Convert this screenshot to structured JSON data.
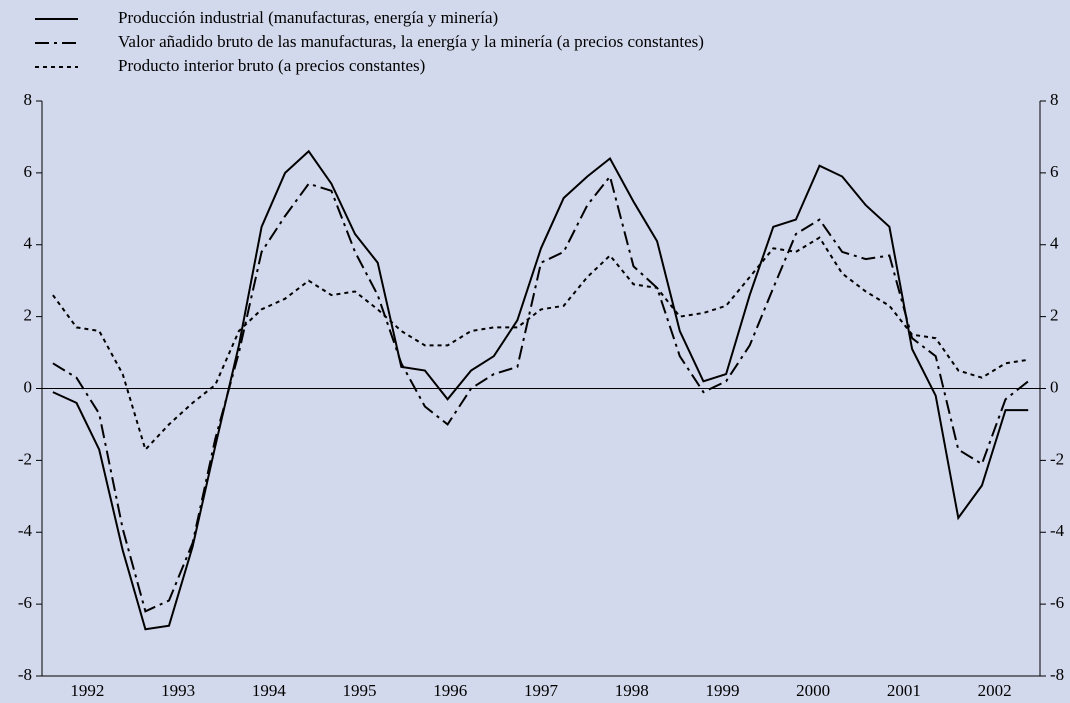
{
  "chart_data": {
    "type": "line",
    "x": [
      1992.12,
      1992.38,
      1992.63,
      1992.89,
      1993.14,
      1993.4,
      1993.66,
      1993.91,
      1994.17,
      1994.42,
      1994.68,
      1994.94,
      1995.19,
      1995.45,
      1995.7,
      1995.96,
      1996.22,
      1996.47,
      1996.73,
      1996.98,
      1997.24,
      1997.5,
      1997.75,
      1998.01,
      1998.26,
      1998.52,
      1998.78,
      1999.03,
      1999.29,
      1999.54,
      1999.8,
      2000.06,
      2000.31,
      2000.57,
      2000.82,
      2001.08,
      2001.34,
      2001.59,
      2001.85,
      2002.1,
      2002.36,
      2002.62,
      2002.87
    ],
    "series": [
      {
        "name": "Producción industrial (manufacturas, energía y minería)",
        "color": "#000000",
        "style": "solid",
        "values": [
          -0.1,
          -0.4,
          -1.7,
          -4.5,
          -6.7,
          -6.6,
          -4.4,
          -1.6,
          1.2,
          4.5,
          6.0,
          6.6,
          5.7,
          4.3,
          3.5,
          0.6,
          0.5,
          -0.3,
          0.5,
          0.9,
          1.9,
          3.9,
          5.3,
          5.9,
          6.4,
          5.2,
          4.1,
          1.6,
          0.2,
          0.4,
          2.6,
          4.5,
          4.7,
          6.2,
          5.9,
          5.1,
          4.5,
          1.1,
          -0.2,
          -3.6,
          -2.7,
          -0.6,
          -0.6
        ]
      },
      {
        "name": "Valor añadido bruto de las manufacturas, la energía y la minería (a precios constantes)",
        "color": "#000000",
        "style": "dashdot",
        "values": [
          0.7,
          0.3,
          -0.7,
          -3.9,
          -6.2,
          -5.9,
          -4.3,
          -1.4,
          1.0,
          3.8,
          4.8,
          5.7,
          5.5,
          3.8,
          2.6,
          0.7,
          -0.5,
          -1.0,
          0.0,
          0.4,
          0.6,
          3.5,
          3.8,
          5.1,
          5.9,
          3.4,
          2.8,
          0.9,
          -0.1,
          0.2,
          1.2,
          2.8,
          4.3,
          4.7,
          3.8,
          3.6,
          3.7,
          1.4,
          0.9,
          -1.7,
          -2.1,
          -0.3,
          0.2
        ]
      },
      {
        "name": "Producto interior bruto (a precios constantes)",
        "color": "#000000",
        "style": "dotted",
        "values": [
          2.6,
          1.7,
          1.6,
          0.4,
          -1.7,
          -1.0,
          -0.4,
          0.1,
          1.6,
          2.2,
          2.5,
          3.0,
          2.6,
          2.7,
          2.2,
          1.6,
          1.2,
          1.2,
          1.6,
          1.7,
          1.7,
          2.2,
          2.3,
          3.1,
          3.7,
          2.9,
          2.8,
          2.0,
          2.1,
          2.3,
          3.1,
          3.9,
          3.8,
          4.2,
          3.2,
          2.7,
          2.3,
          1.5,
          1.4,
          0.5,
          0.3,
          0.7,
          0.8
        ]
      }
    ],
    "xlim": [
      1992,
      2003
    ],
    "xticks": [
      {
        "value": 1992.5,
        "label": "1992"
      },
      {
        "value": 1993.5,
        "label": "1993"
      },
      {
        "value": 1994.5,
        "label": "1994"
      },
      {
        "value": 1995.5,
        "label": "1995"
      },
      {
        "value": 1996.5,
        "label": "1996"
      },
      {
        "value": 1997.5,
        "label": "1997"
      },
      {
        "value": 1998.5,
        "label": "1998"
      },
      {
        "value": 1999.5,
        "label": "1999"
      },
      {
        "value": 2000.5,
        "label": "2000"
      },
      {
        "value": 2001.5,
        "label": "2001"
      },
      {
        "value": 2002.5,
        "label": "2002"
      }
    ],
    "ylim": [
      -8,
      8
    ],
    "yticks": [
      -8,
      -6,
      -4,
      -2,
      0,
      2,
      4,
      6,
      8
    ],
    "zero_line": true,
    "legend": "top-left"
  }
}
